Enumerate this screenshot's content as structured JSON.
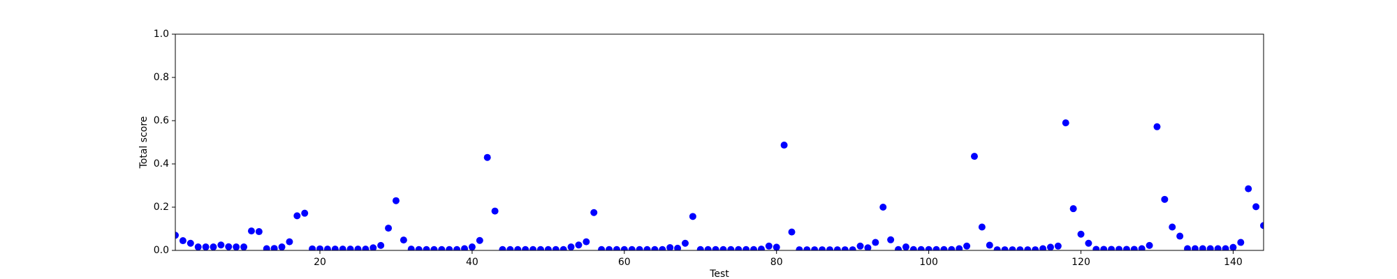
{
  "chart_data": {
    "type": "scatter",
    "x_label": "Test",
    "y_label": "Total score",
    "color": "#0000ff",
    "x": [
      1,
      2,
      3,
      4,
      5,
      6,
      7,
      8,
      9,
      10,
      11,
      12,
      13,
      14,
      15,
      16,
      17,
      18,
      19,
      20,
      21,
      22,
      23,
      24,
      25,
      26,
      27,
      28,
      29,
      30,
      31,
      32,
      33,
      34,
      35,
      36,
      37,
      38,
      39,
      40,
      41,
      42,
      43,
      44,
      45,
      46,
      47,
      48,
      49,
      50,
      51,
      52,
      53,
      54,
      55,
      56,
      57,
      58,
      59,
      60,
      61,
      62,
      63,
      64,
      65,
      66,
      67,
      68,
      69,
      70,
      71,
      72,
      73,
      74,
      75,
      76,
      77,
      78,
      79,
      80,
      81,
      82,
      83,
      84,
      85,
      86,
      87,
      88,
      89,
      90,
      91,
      92,
      93,
      94,
      95,
      96,
      97,
      98,
      99,
      100,
      101,
      102,
      103,
      104,
      105,
      106,
      107,
      108,
      109,
      110,
      111,
      112,
      113,
      114,
      115,
      116,
      117,
      118,
      119,
      120,
      121,
      122,
      123,
      124,
      125,
      126,
      127,
      128,
      129,
      130,
      131,
      132,
      133,
      134,
      135,
      136,
      137,
      138,
      139,
      140,
      141,
      142,
      143,
      144
    ],
    "values": [
      0.07,
      0.045,
      0.033,
      0.016,
      0.016,
      0.016,
      0.025,
      0.017,
      0.016,
      0.016,
      0.09,
      0.087,
      0.008,
      0.009,
      0.016,
      0.04,
      0.16,
      0.172,
      0.007,
      0.007,
      0.006,
      0.006,
      0.006,
      0.006,
      0.006,
      0.006,
      0.012,
      0.023,
      0.103,
      0.23,
      0.048,
      0.006,
      0.004,
      0.004,
      0.004,
      0.004,
      0.004,
      0.004,
      0.008,
      0.016,
      0.046,
      0.43,
      0.182,
      0.004,
      0.004,
      0.004,
      0.004,
      0.004,
      0.004,
      0.004,
      0.004,
      0.004,
      0.016,
      0.025,
      0.04,
      0.175,
      0.004,
      0.004,
      0.004,
      0.004,
      0.004,
      0.004,
      0.004,
      0.004,
      0.004,
      0.013,
      0.01,
      0.033,
      0.157,
      0.004,
      0.004,
      0.004,
      0.004,
      0.004,
      0.004,
      0.004,
      0.004,
      0.006,
      0.02,
      0.015,
      0.487,
      0.085,
      0.003,
      0.003,
      0.003,
      0.003,
      0.003,
      0.003,
      0.003,
      0.003,
      0.02,
      0.012,
      0.037,
      0.2,
      0.049,
      0.004,
      0.016,
      0.004,
      0.004,
      0.004,
      0.004,
      0.004,
      0.004,
      0.008,
      0.02,
      0.435,
      0.108,
      0.024,
      0.003,
      0.003,
      0.003,
      0.003,
      0.003,
      0.003,
      0.008,
      0.015,
      0.02,
      0.59,
      0.193,
      0.075,
      0.033,
      0.005,
      0.005,
      0.005,
      0.005,
      0.005,
      0.005,
      0.008,
      0.023,
      0.572,
      0.236,
      0.108,
      0.066,
      0.008,
      0.008,
      0.008,
      0.008,
      0.008,
      0.008,
      0.014,
      0.037,
      0.285,
      0.202,
      0.115
    ],
    "xlim": [
      1,
      144
    ],
    "xticks": [
      20,
      40,
      60,
      80,
      100,
      120,
      140
    ],
    "ylim": [
      0,
      1
    ],
    "yticks": [
      {
        "value": 0,
        "label": "0.0"
      },
      0.2,
      0.4,
      0.6,
      0.8,
      {
        "value": 1,
        "label": "1.0"
      }
    ]
  }
}
